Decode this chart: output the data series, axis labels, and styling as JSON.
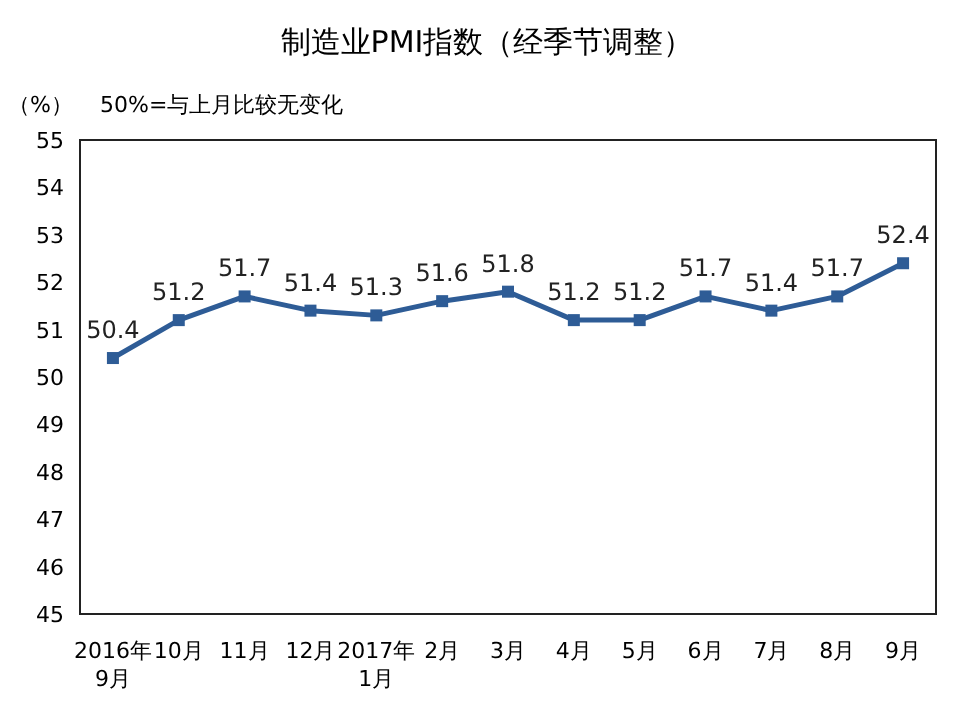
{
  "chart_data": {
    "type": "line",
    "title": "制造业PMI指数（经季节调整）",
    "ylabel": "（%）",
    "annotations": [
      "50%=与上月比较无变化"
    ],
    "categories": [
      "2016年\n9月",
      "10月",
      "11月",
      "12月",
      "2017年\n1月",
      "2月",
      "3月",
      "4月",
      "5月",
      "6月",
      "7月",
      "8月",
      "9月"
    ],
    "series": [
      {
        "color": "#2e5c96",
        "values": [
          50.4,
          51.2,
          51.7,
          51.4,
          51.3,
          51.6,
          51.8,
          51.2,
          51.2,
          51.7,
          51.4,
          51.7,
          52.4
        ]
      }
    ],
    "ylim": [
      45,
      55
    ],
    "yticks": [
      45,
      46,
      47,
      48,
      49,
      50,
      51,
      52,
      53,
      54,
      55
    ],
    "grid": false,
    "marker": "square",
    "line_style": "solid",
    "data_labels": true
  }
}
